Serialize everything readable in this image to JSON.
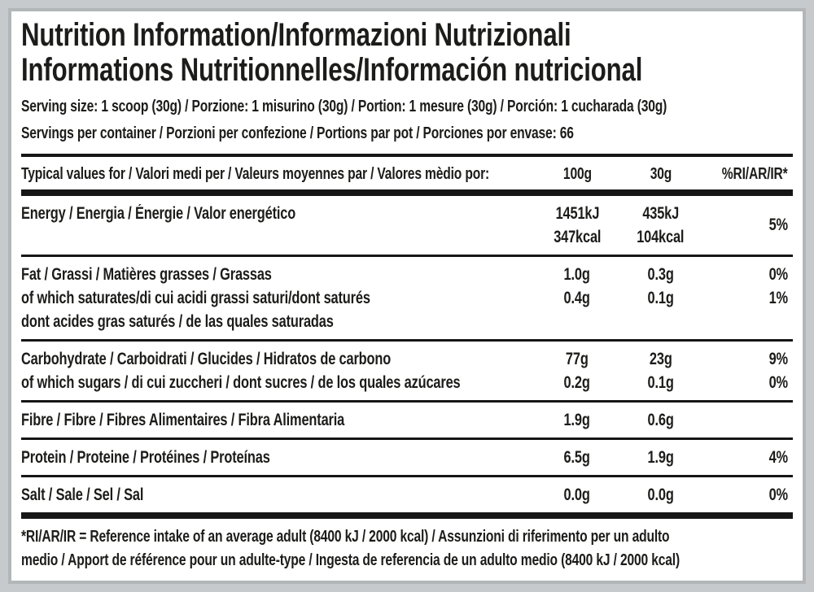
{
  "colors": {
    "page_background": "#c7cacc",
    "label_background": "#ffffff",
    "label_border": "#b2b6b8",
    "text": "#1c1c1a",
    "rule": "#161616"
  },
  "title": {
    "line1": "Nutrition Information/Informazioni Nutrizionali",
    "line2": "Informations Nutritionnelles/Información nutricional"
  },
  "serving": {
    "size_line": "Serving size: 1 scoop (30g) / Porzione: 1 misurino (30g) / Portion: 1 mesure (30g) / Porción: 1 cucharada (30g)",
    "per_container_line": "Servings per container / Porzioni per confezione / Portions par pot / Porciones por envase: 66"
  },
  "table": {
    "header": {
      "label": "Typical values for / Valori medi per / Valeurs moyennes par / Valores mèdio por:",
      "col_100g": "100g",
      "col_30g": "30g",
      "col_ri": "%RI/AR/IR*"
    },
    "energy": {
      "label": "Energy / Energia / Énergie / Valor energético",
      "v100_kj": "1451kJ",
      "v100_kcal": "347kcal",
      "v30_kj": "435kJ",
      "v30_kcal": "104kcal",
      "ri": "5%"
    },
    "sections": [
      {
        "name": "fat",
        "rows": [
          {
            "label": "Fat / Grassi / Matières grasses / Grassas",
            "v100": "1.0g",
            "v30": "0.3g",
            "ri": "0%"
          },
          {
            "label": "of which saturates/di cui acidi grassi saturi/dont saturés",
            "v100": "0.4g",
            "v30": "0.1g",
            "ri": "1%"
          },
          {
            "label": "dont acides gras saturés / de las quales saturadas",
            "v100": "",
            "v30": "",
            "ri": ""
          }
        ]
      },
      {
        "name": "carbohydrate",
        "rows": [
          {
            "label": "Carbohydrate / Carboidrati / Glucides / Hidratos de carbono",
            "v100": "77g",
            "v30": "23g",
            "ri": "9%"
          },
          {
            "label": "of which sugars / di cui zuccheri / dont sucres / de los quales azúcares",
            "v100": "0.2g",
            "v30": "0.1g",
            "ri": "0%"
          }
        ]
      },
      {
        "name": "fibre",
        "rows": [
          {
            "label": "Fibre / Fibre / Fibres Alimentaires / Fibra Alimentaria",
            "v100": "1.9g",
            "v30": "0.6g",
            "ri": ""
          }
        ]
      },
      {
        "name": "protein",
        "rows": [
          {
            "label": "Protein / Proteine / Protéines / Proteínas",
            "v100": "6.5g",
            "v30": "1.9g",
            "ri": "4%"
          }
        ]
      },
      {
        "name": "salt",
        "rows": [
          {
            "label": "Salt / Sale / Sel / Sal",
            "v100": "0.0g",
            "v30": "0.0g",
            "ri": "0%"
          }
        ]
      }
    ]
  },
  "footnote": {
    "line1": "*RI/AR/IR = Reference intake of an average adult (8400 kJ / 2000 kcal) / Assunzioni di riferimento per un adulto",
    "line2": "medio / Apport de référence pour un adulte-type / Ingesta de referencia de un adulto medio (8400 kJ / 2000 kcal)"
  }
}
